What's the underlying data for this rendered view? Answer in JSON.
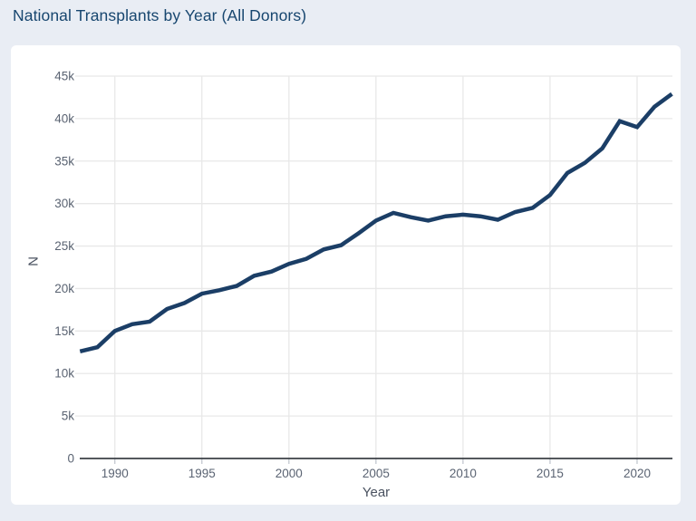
{
  "page": {
    "title": "National Transplants by Year (All Donors)",
    "background_color": "#e9edf4",
    "card_background_color": "#ffffff",
    "title_color": "#17466f"
  },
  "chart_data": {
    "type": "line",
    "title": "National Transplants by Year (All Donors)",
    "xlabel": "Year",
    "ylabel": "N",
    "series": [
      {
        "name": "All Donors",
        "x": [
          1988,
          1989,
          1990,
          1991,
          1992,
          1993,
          1994,
          1995,
          1996,
          1997,
          1998,
          1999,
          2000,
          2001,
          2002,
          2003,
          2004,
          2005,
          2006,
          2007,
          2008,
          2009,
          2010,
          2011,
          2012,
          2013,
          2014,
          2015,
          2016,
          2017,
          2018,
          2019,
          2020,
          2021,
          2022
        ],
        "values": [
          12600,
          13100,
          15000,
          15800,
          16100,
          17600,
          18300,
          19400,
          19800,
          20300,
          21500,
          22000,
          22900,
          23500,
          24600,
          25100,
          26500,
          28000,
          28900,
          28400,
          28000,
          28500,
          28700,
          28500,
          28100,
          29000,
          29500,
          31000,
          33600,
          34800,
          36500,
          39700,
          39000,
          41400,
          42900
        ]
      }
    ],
    "xlim": [
      1988,
      2022
    ],
    "ylim": [
      0,
      45000
    ],
    "xticks": [
      1990,
      1995,
      2000,
      2005,
      2010,
      2015,
      2020
    ],
    "yticks": [
      0,
      5000,
      10000,
      15000,
      20000,
      25000,
      30000,
      35000,
      40000,
      45000
    ],
    "ytick_labels": [
      "0",
      "5k",
      "10k",
      "15k",
      "20k",
      "25k",
      "30k",
      "35k",
      "40k",
      "45k"
    ],
    "grid": true,
    "legend": false,
    "style": {
      "line_color": "#1b3e66",
      "line_width": 4.5,
      "grid_color": "#e8e8e8",
      "axis_line_color": "#3b4046",
      "tick_color": "#c2c7cf",
      "tick_label_color": "#5a6372",
      "axis_title_color": "#4a5260"
    }
  }
}
